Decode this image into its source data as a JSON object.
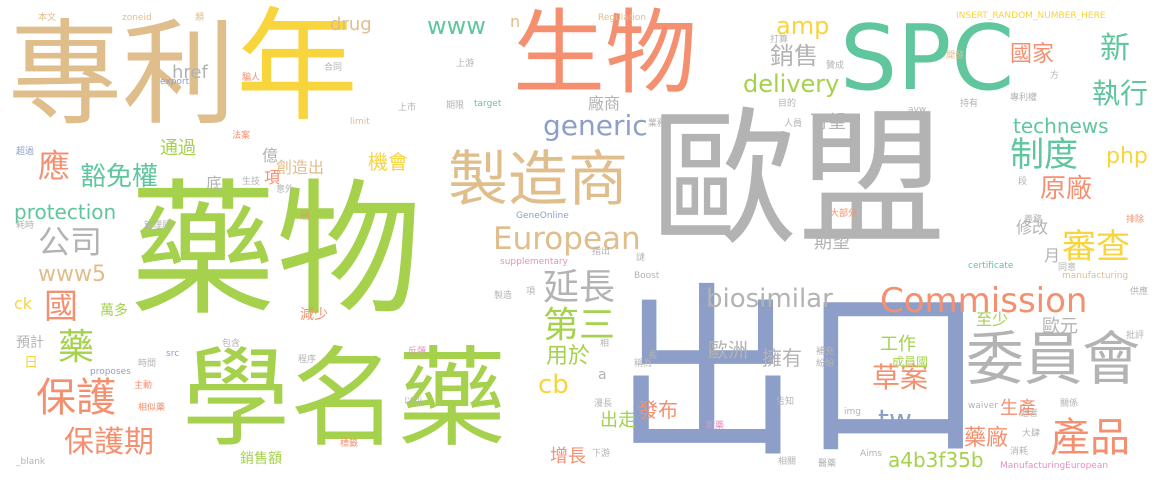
{
  "colors": {
    "tan": "#e0be8c",
    "yellow": "#f8d43d",
    "salmon": "#f49070",
    "teal": "#5fc69d",
    "grey": "#b3b3b3",
    "green": "#a5d14d",
    "blue": "#8d9fc9",
    "pink": "#e78fc3"
  },
  "words": {
    "zhuanli": "專利",
    "nian": "年",
    "shengwu": "生物",
    "spc": "SPC",
    "oumeng": "歐盟",
    "yaowu": "藥物",
    "xuemingyao": "學名藥",
    "chukou": "出口",
    "zhizaoshang": "製造商",
    "weiyuanhui": "委員會",
    "commission": "Commission",
    "european": "European",
    "generic": "generic",
    "biosimilar": "biosimilar",
    "delivery": "delivery",
    "technews": "technews",
    "zhidu": "制度",
    "shencha": "審查",
    "yuanchang": "原廠",
    "ying": "應",
    "huomianquan": "豁免權",
    "baohu": "保護",
    "baohuqi": "保護期",
    "chanpin": "產品",
    "caoan": "草案",
    "yanchang": "延長",
    "disan": "第三",
    "gongsi": "公司",
    "guo": "國",
    "yao": "藥",
    "www": "www",
    "www5": "www5",
    "amp": "amp",
    "xiaoshou": "銷售",
    "guojia": "國家",
    "xin": "新",
    "zhixing": "執行",
    "php": "php",
    "changshang": "廠商",
    "protection": "protection",
    "tw": "tw",
    "yaochang": "藥廠",
    "cb": "cb",
    "shengchan": "生產",
    "a4b3f35b": "a4b3f35b",
    "zengzhang": "增長",
    "fabu": "發布",
    "chuzou": "出走",
    "yongyu": "用於",
    "ouzhou": "歐洲",
    "yongyou": "擁有",
    "gongzuo": "工作",
    "chengyuanguo": "成員國",
    "zhishao": "至少",
    "ouyuan": "歐元",
    "xiugai": "修改",
    "qiwang": "期望",
    "tongguo": "通過",
    "kewang": "可望",
    "chuangzaochu": "創造出",
    "jihui": "機會",
    "href": "href",
    "drug": "drug",
    "n": "n",
    "yi": "億",
    "xiang": "項",
    "di": "底",
    "yue": "月",
    "wanduo": "萬多",
    "yuji": "預計",
    "ri": "日",
    "jianshao": "減少",
    "ck": "ck",
    "a": "a",
    "xiaoshoue": "銷售額",
    "INSERT_RANDOM_NUMBER_HERE": "INSERT_RANDOM_NUMBER_HERE",
    "benwen": "本文",
    "zoneid": "zoneid",
    "lei": "類",
    "Regulation": "Regulation",
    "export": "export",
    "pianren": "騙人",
    "hetong": "合同",
    "shangyou": "上游",
    "dakuo": "打算",
    "zancheng": "贊成",
    "kaifa": "開發",
    "fang": "方",
    "shangshi": "上市",
    "qixian": "期限",
    "target": "target",
    "mudi": "目的",
    "avw": "avw",
    "chiyou": "持有",
    "zhuanliquan": "專利權",
    "limit": "limit",
    "faan": "法案",
    "yewu": "業務",
    "renyuan": "人員",
    "chaoguo": "超過",
    "shengji": "生技",
    "yiwai": "意外",
    "duan": "段",
    "guanliju": "管理局",
    "GeneOnline": "GeneOnline",
    "dabufen": "大部分",
    "yiwu": "義務",
    "haoshi": "耗時",
    "baoxian": "排除",
    "supplementary": "supplementary",
    "zhichu": "指出",
    "xie": "謎",
    "Boost": "Boost",
    "certificate": "certificate",
    "manufacturing": "manufacturing",
    "tongyi": "同意",
    "gongying": "供應",
    "zhizao": "製造",
    "xiangbi": "項",
    "pizhun": "批評",
    "baohan": "包含",
    "fantan": "反彈",
    "xiang2": "相",
    "chang": "長",
    "buchong": "補充",
    "fenfen": "紛紛",
    "shijian": "時間",
    "chengxu": "程序",
    "src": "src",
    "proposes": "proposes",
    "zhudong": "主動",
    "chengwei": "稱為",
    "xiangsiyao": "相似藥",
    "yili": "以利",
    "manzhang": "漫長",
    "gaozhi": "告知",
    "img": "img",
    "waiver": "waiver",
    "jiezhe": "遊者",
    "guanxi": "關係",
    "xinyao": "新藥",
    "dasi": "大肆",
    "xiaohao": "消耗",
    "biaozhun": "標籤",
    "blank": "_blank",
    "xiayou": "下游",
    "xiangguan": "相關",
    "yijia": "醫藥",
    "Aims": "Aims",
    "ManufacturingEuropean": "ManufacturingEuropean",
    "jie": "屆"
  }
}
